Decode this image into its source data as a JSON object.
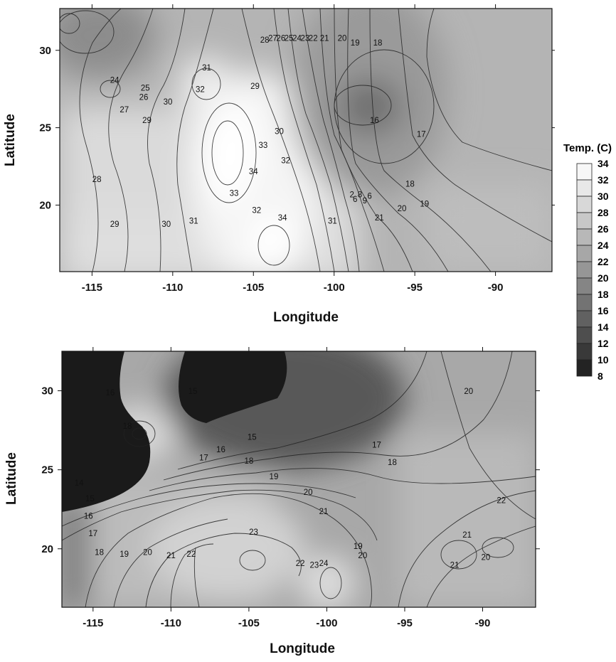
{
  "top_map": {
    "xlabel": "Longitude",
    "ylabel": "Latitude",
    "x_ticks": [
      "-115",
      "-110",
      "-105",
      "-100",
      "-95",
      "-90"
    ],
    "y_ticks": [
      "30",
      "25",
      "20"
    ],
    "contour_labels": [
      {
        "text": "24",
        "lon": -113.6,
        "lat": 27.9
      },
      {
        "text": "25",
        "lon": -111.7,
        "lat": 27.4
      },
      {
        "text": "26",
        "lon": -111.8,
        "lat": 26.8
      },
      {
        "text": "27",
        "lon": -113.0,
        "lat": 26.0
      },
      {
        "text": "29",
        "lon": -111.6,
        "lat": 25.3
      },
      {
        "text": "30",
        "lon": -110.3,
        "lat": 26.5
      },
      {
        "text": "31",
        "lon": -107.9,
        "lat": 28.7
      },
      {
        "text": "32",
        "lon": -108.3,
        "lat": 27.3
      },
      {
        "text": "29",
        "lon": -104.9,
        "lat": 27.5
      },
      {
        "text": "30",
        "lon": -103.4,
        "lat": 24.6
      },
      {
        "text": "33",
        "lon": -104.4,
        "lat": 23.7
      },
      {
        "text": "34",
        "lon": -105.0,
        "lat": 22.0
      },
      {
        "text": "32",
        "lon": -103.0,
        "lat": 22.7
      },
      {
        "text": "28",
        "lon": -114.7,
        "lat": 21.5
      },
      {
        "text": "29",
        "lon": -113.6,
        "lat": 18.6
      },
      {
        "text": "30",
        "lon": -110.4,
        "lat": 18.6
      },
      {
        "text": "31",
        "lon": -108.7,
        "lat": 18.8
      },
      {
        "text": "33",
        "lon": -106.2,
        "lat": 20.6
      },
      {
        "text": "32",
        "lon": -104.8,
        "lat": 19.5
      },
      {
        "text": "34",
        "lon": -103.2,
        "lat": 19.0
      },
      {
        "text": "31",
        "lon": -100.1,
        "lat": 18.8
      },
      {
        "text": "28",
        "lon": -104.3,
        "lat": 30.5
      },
      {
        "text": "27",
        "lon": -103.8,
        "lat": 30.6
      },
      {
        "text": "26",
        "lon": -103.3,
        "lat": 30.6
      },
      {
        "text": "25",
        "lon": -102.8,
        "lat": 30.6
      },
      {
        "text": "24",
        "lon": -102.3,
        "lat": 30.6
      },
      {
        "text": "23",
        "lon": -101.8,
        "lat": 30.6
      },
      {
        "text": "22",
        "lon": -101.3,
        "lat": 30.6
      },
      {
        "text": "21",
        "lon": -100.6,
        "lat": 30.6
      },
      {
        "text": "20",
        "lon": -99.5,
        "lat": 30.6
      },
      {
        "text": "19",
        "lon": -98.7,
        "lat": 30.3
      },
      {
        "text": "18",
        "lon": -97.3,
        "lat": 30.3
      },
      {
        "text": "16",
        "lon": -97.5,
        "lat": 25.3
      },
      {
        "text": "17",
        "lon": -94.6,
        "lat": 24.4
      },
      {
        "text": "18",
        "lon": -95.3,
        "lat": 21.2
      },
      {
        "text": "19",
        "lon": -94.4,
        "lat": 19.9
      },
      {
        "text": "20",
        "lon": -95.8,
        "lat": 19.6
      },
      {
        "text": "21",
        "lon": -97.2,
        "lat": 19.0
      },
      {
        "text": "2",
        "lon": -98.9,
        "lat": 20.5
      },
      {
        "text": "6",
        "lon": -98.7,
        "lat": 20.2
      },
      {
        "text": "8",
        "lon": -98.4,
        "lat": 20.5
      },
      {
        "text": "9",
        "lon": -98.1,
        "lat": 20.1
      },
      {
        "text": "6",
        "lon": -97.8,
        "lat": 20.4
      }
    ]
  },
  "bottom_map": {
    "xlabel": "Longitude",
    "ylabel": "Latitude",
    "x_ticks": [
      "-115",
      "-110",
      "-105",
      "-100",
      "-95",
      "-90"
    ],
    "y_ticks": [
      "30",
      "25",
      "20"
    ],
    "contour_labels": [
      {
        "text": "16",
        "lon": -113.9,
        "lat": 29.7
      },
      {
        "text": "18",
        "lon": -112.8,
        "lat": 27.6
      },
      {
        "text": "15",
        "lon": -108.6,
        "lat": 29.8
      },
      {
        "text": "15",
        "lon": -104.8,
        "lat": 26.9
      },
      {
        "text": "16",
        "lon": -106.8,
        "lat": 26.1
      },
      {
        "text": "17",
        "lon": -107.9,
        "lat": 25.6
      },
      {
        "text": "18",
        "lon": -105.0,
        "lat": 25.4
      },
      {
        "text": "19",
        "lon": -103.4,
        "lat": 24.4
      },
      {
        "text": "20",
        "lon": -101.2,
        "lat": 23.4
      },
      {
        "text": "21",
        "lon": -100.2,
        "lat": 22.2
      },
      {
        "text": "17",
        "lon": -96.8,
        "lat": 26.4
      },
      {
        "text": "18",
        "lon": -95.8,
        "lat": 25.3
      },
      {
        "text": "20",
        "lon": -90.9,
        "lat": 29.8
      },
      {
        "text": "22",
        "lon": -88.8,
        "lat": 22.9
      },
      {
        "text": "21",
        "lon": -91.0,
        "lat": 20.7
      },
      {
        "text": "20",
        "lon": -89.8,
        "lat": 19.3
      },
      {
        "text": "21",
        "lon": -91.8,
        "lat": 18.8
      },
      {
        "text": "14",
        "lon": -115.9,
        "lat": 24.0
      },
      {
        "text": "15",
        "lon": -115.2,
        "lat": 23.0
      },
      {
        "text": "16",
        "lon": -115.3,
        "lat": 21.9
      },
      {
        "text": "17",
        "lon": -115.0,
        "lat": 20.8
      },
      {
        "text": "18",
        "lon": -114.6,
        "lat": 19.6
      },
      {
        "text": "19",
        "lon": -113.0,
        "lat": 19.5
      },
      {
        "text": "20",
        "lon": -111.5,
        "lat": 19.6
      },
      {
        "text": "21",
        "lon": -110.0,
        "lat": 19.4
      },
      {
        "text": "22",
        "lon": -108.7,
        "lat": 19.5
      },
      {
        "text": "23",
        "lon": -104.7,
        "lat": 20.9
      },
      {
        "text": "22",
        "lon": -101.7,
        "lat": 18.9
      },
      {
        "text": "23",
        "lon": -100.8,
        "lat": 18.8
      },
      {
        "text": "24",
        "lon": -100.2,
        "lat": 18.9
      },
      {
        "text": "19",
        "lon": -98.0,
        "lat": 20.0
      },
      {
        "text": "20",
        "lon": -97.7,
        "lat": 19.4
      }
    ]
  },
  "colorbar": {
    "title": "Temp. (C)",
    "levels": [
      "34",
      "32",
      "30",
      "28",
      "26",
      "24",
      "22",
      "20",
      "18",
      "16",
      "14",
      "12",
      "10",
      "8"
    ]
  }
}
